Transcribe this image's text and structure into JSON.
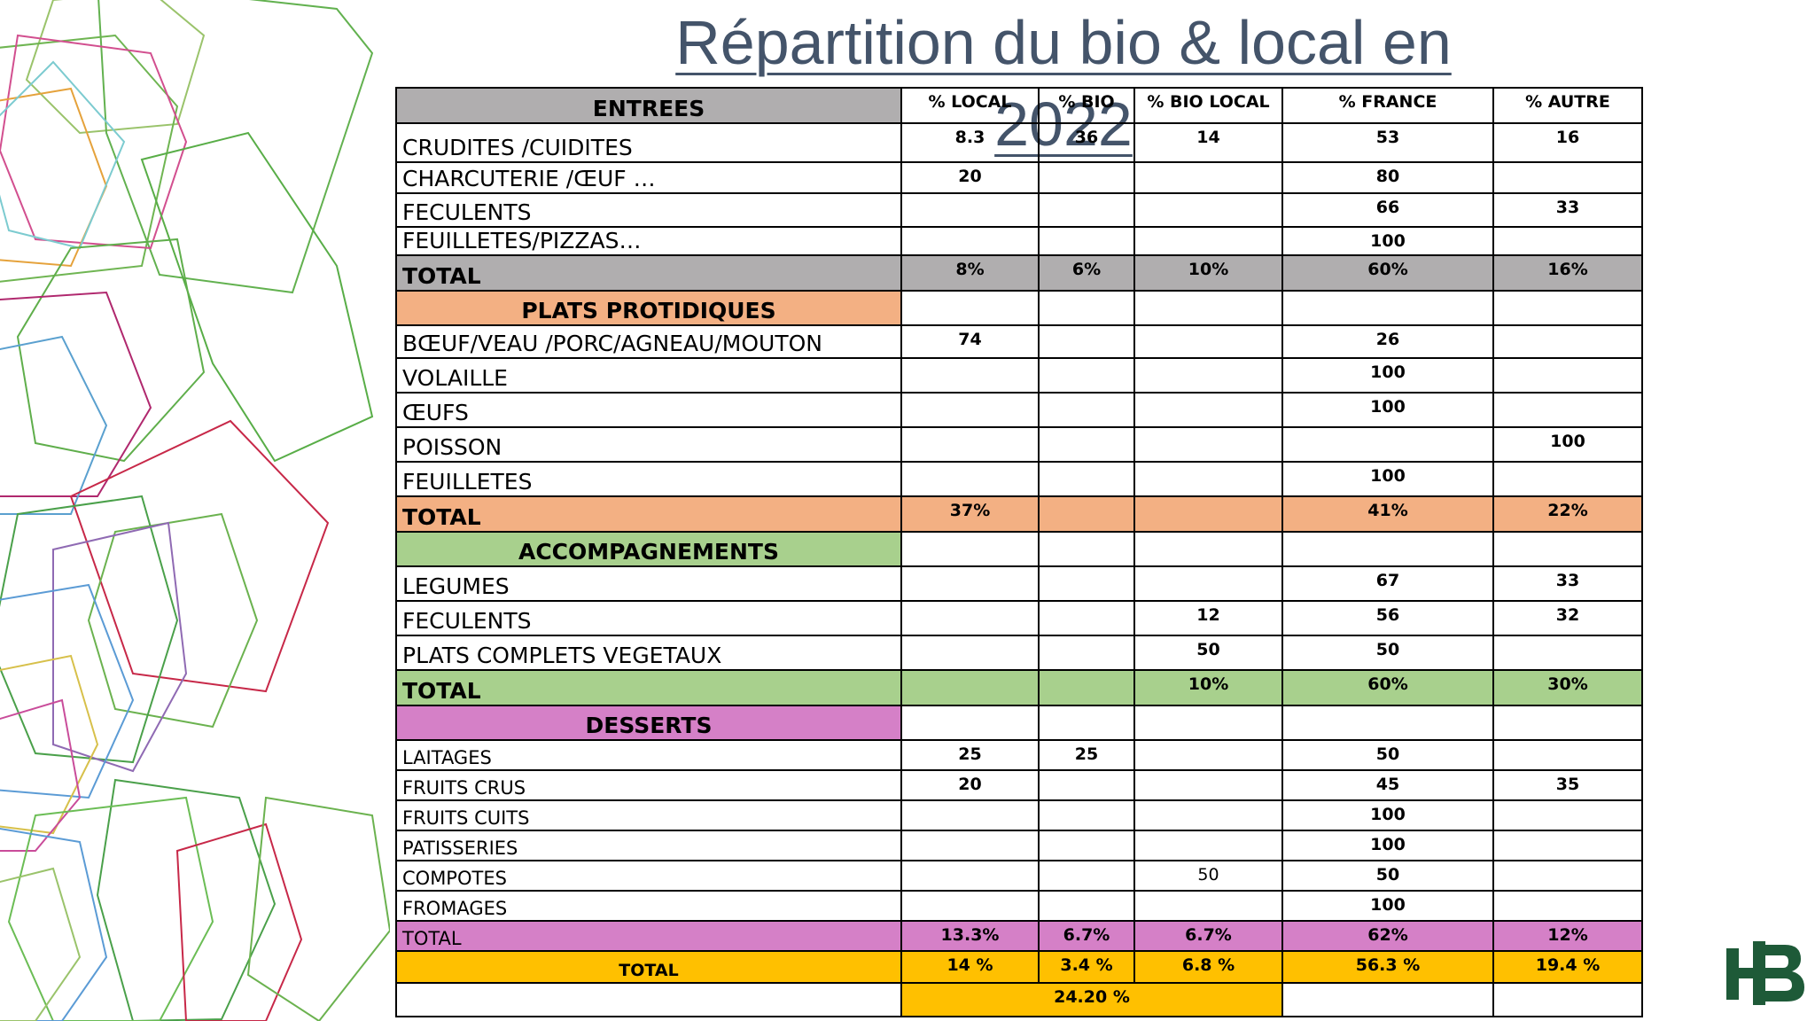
{
  "title": "Répartition du bio & local en 2022",
  "columns": [
    "% LOCAL",
    "% BIO",
    "% BIO LOCAL",
    "% FRANCE",
    "% AUTRE"
  ],
  "sections": [
    {
      "name": "ENTREES",
      "color": "#b0aeaf",
      "rows": [
        {
          "label": "CRUDITES /CUIDITES",
          "values": [
            "8.3",
            "36",
            "14",
            "53",
            "16"
          ]
        },
        {
          "label": "CHARCUTERIE /ŒUF …",
          "values": [
            "20",
            "",
            "",
            "80",
            ""
          ]
        },
        {
          "label": "FECULENTS",
          "values": [
            "",
            "",
            "",
            "66",
            "33"
          ]
        },
        {
          "label": "FEUILLETES/PIZZAS…",
          "values": [
            "",
            "",
            "",
            "100",
            ""
          ]
        }
      ],
      "total": {
        "label": "TOTAL",
        "values": [
          "8%",
          "6%",
          "10%",
          "60%",
          "16%"
        ]
      }
    },
    {
      "name": "PLATS PROTIDIQUES",
      "color": "#f3b083",
      "rows": [
        {
          "label": "BŒUF/VEAU /PORC/AGNEAU/MOUTON",
          "values": [
            "74",
            "",
            "",
            "26",
            ""
          ]
        },
        {
          "label": "VOLAILLE",
          "values": [
            "",
            "",
            "",
            "100",
            ""
          ]
        },
        {
          "label": "ŒUFS",
          "values": [
            "",
            "",
            "",
            "100",
            ""
          ]
        },
        {
          "label": "POISSON",
          "values": [
            "",
            "",
            "",
            "",
            "100"
          ]
        },
        {
          "label": "FEUILLETES",
          "values": [
            "",
            "",
            "",
            "100",
            ""
          ]
        }
      ],
      "total": {
        "label": "TOTAL",
        "values": [
          "37%",
          "",
          "",
          "41%",
          "22%"
        ]
      }
    },
    {
      "name": "ACCOMPAGNEMENTS",
      "color": "#a8d08d",
      "rows": [
        {
          "label": "LEGUMES",
          "values": [
            "",
            "",
            "",
            "67",
            "33"
          ]
        },
        {
          "label": "FECULENTS",
          "values": [
            "",
            "",
            "12",
            "56",
            "32"
          ]
        },
        {
          "label": "PLATS COMPLETS VEGETAUX",
          "values": [
            "",
            "",
            "50",
            "50",
            ""
          ]
        }
      ],
      "total": {
        "label": "TOTAL",
        "values": [
          "",
          "",
          "10%",
          "60%",
          "30%"
        ]
      }
    },
    {
      "name": "DESSERTS",
      "color": "#d580c7",
      "rows": [
        {
          "label": "LAITAGES",
          "values": [
            "25",
            "25",
            "",
            "50",
            ""
          ]
        },
        {
          "label": "FRUITS CRUS",
          "values": [
            "20",
            "",
            "",
            "45",
            "35"
          ]
        },
        {
          "label": "FRUITS CUITS",
          "values": [
            "",
            "",
            "",
            "100",
            ""
          ]
        },
        {
          "label": "PATISSERIES",
          "values": [
            "",
            "",
            "",
            "100",
            ""
          ]
        },
        {
          "label": "COMPOTES",
          "values": [
            "",
            "",
            "50",
            "50",
            ""
          ]
        },
        {
          "label": "FROMAGES",
          "values": [
            "",
            "",
            "",
            "100",
            ""
          ]
        }
      ],
      "total": {
        "label": "TOTAL",
        "values": [
          "13.3%",
          "6.7%",
          "6.7%",
          "62%",
          "12%"
        ]
      }
    }
  ],
  "grand_total": {
    "label": "TOTAL",
    "values": [
      "14 %",
      "3.4 %",
      "6.8 %",
      "56.3 %",
      "19.4 %"
    ],
    "color": "#ffc000"
  },
  "combined": {
    "value": "24.20 %"
  },
  "logo": {
    "icon": "hb-logo-icon",
    "color": "#1e5a38"
  }
}
